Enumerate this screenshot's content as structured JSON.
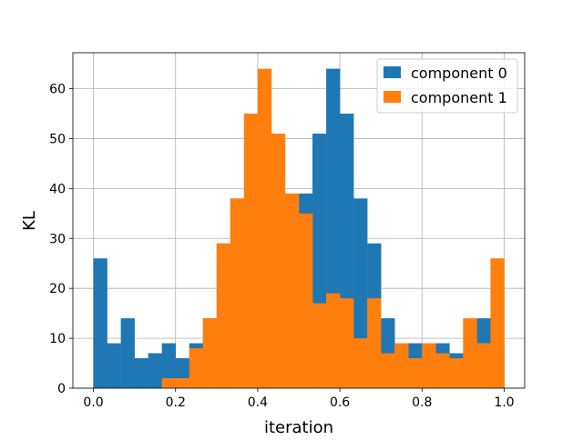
{
  "chart_data": {
    "type": "histogram",
    "title": "",
    "xlabel": "iteration",
    "ylabel": "KL",
    "xlim": [
      -0.05,
      1.05
    ],
    "ylim": [
      0,
      67.2
    ],
    "xticks": [
      "0.0",
      "0.2",
      "0.4",
      "0.6",
      "0.8",
      "1.0"
    ],
    "yticks": [
      "0",
      "10",
      "20",
      "30",
      "40",
      "50",
      "60"
    ],
    "grid": true,
    "legend_position": "upper right",
    "bin_width": 0.0333,
    "bin_starts": [
      0.0,
      0.0333,
      0.0667,
      0.1,
      0.1333,
      0.1667,
      0.2,
      0.2333,
      0.2667,
      0.3,
      0.3333,
      0.3667,
      0.4,
      0.4333,
      0.4667,
      0.5,
      0.5333,
      0.5667,
      0.6,
      0.6333,
      0.6667,
      0.7,
      0.7333,
      0.7667,
      0.8,
      0.8333,
      0.8667,
      0.9,
      0.9333,
      0.9667
    ],
    "series": [
      {
        "name": "component 0",
        "color": "#1f77b4",
        "values": [
          26,
          9,
          14,
          6,
          7,
          9,
          6,
          9,
          14,
          29,
          38,
          55,
          51,
          39,
          35,
          39,
          51,
          64,
          55,
          38,
          29,
          14,
          7,
          9,
          6,
          9,
          7,
          6,
          14,
          9
        ]
      },
      {
        "name": "component 1",
        "color": "#ff7f0e",
        "values": [
          0,
          0,
          0,
          0,
          0,
          2,
          2,
          8,
          14,
          29,
          38,
          55,
          64,
          51,
          39,
          35,
          17,
          19,
          18,
          10,
          18,
          7,
          9,
          6,
          9,
          7,
          6,
          14,
          9,
          26
        ]
      }
    ]
  }
}
